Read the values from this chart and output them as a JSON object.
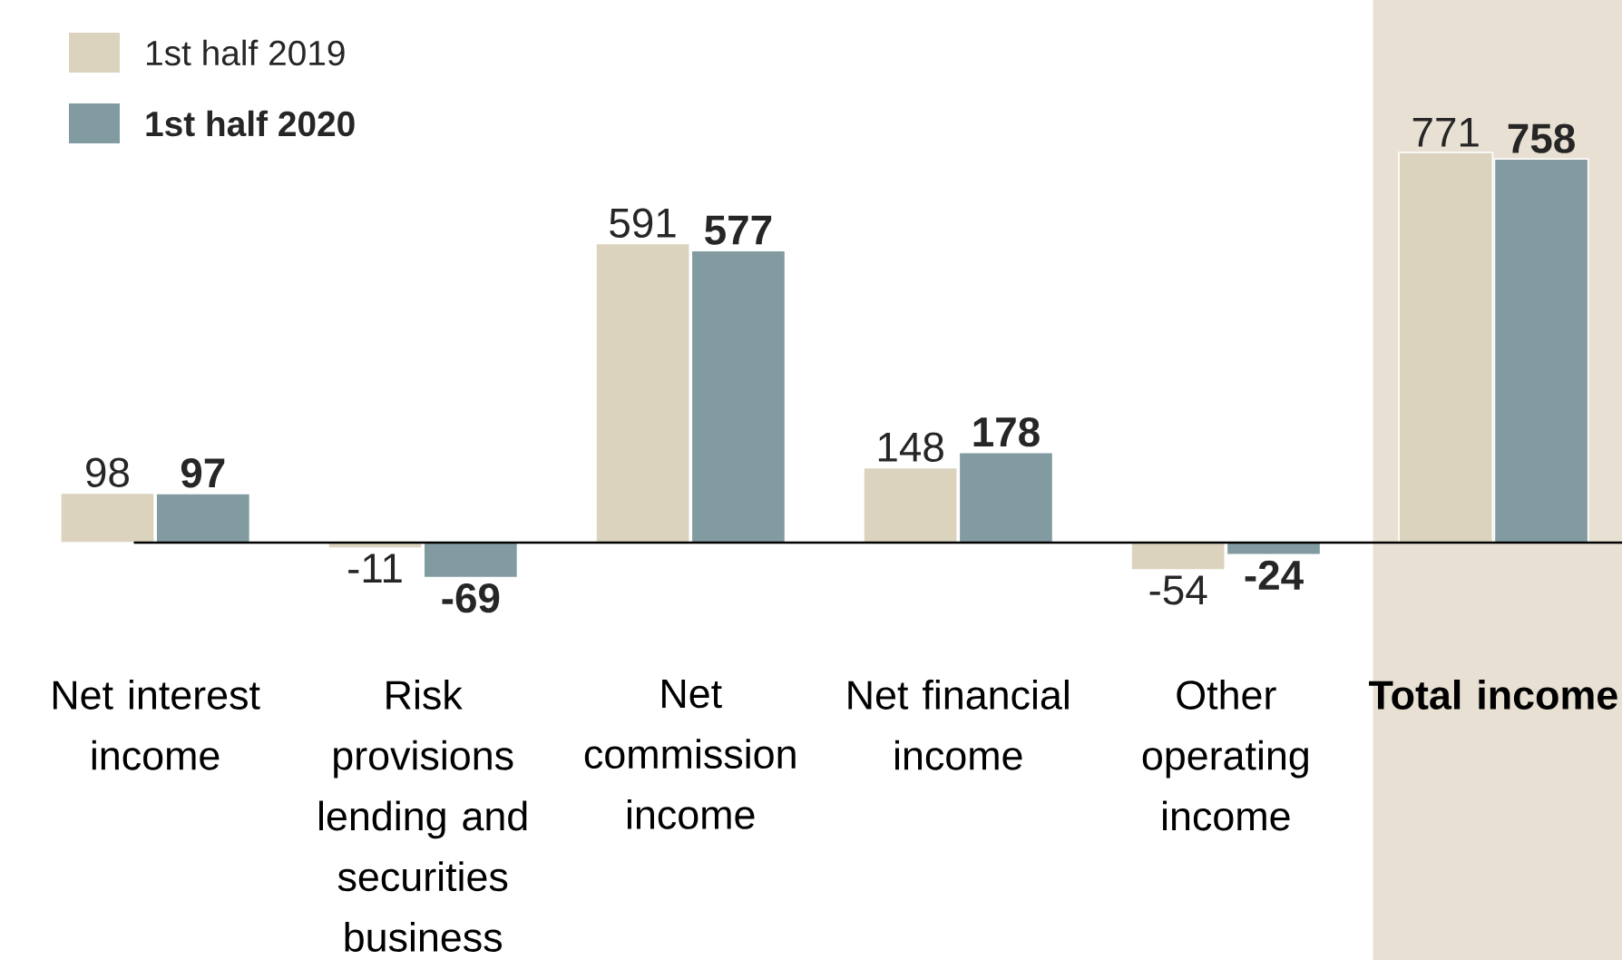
{
  "chart_data": {
    "type": "bar",
    "categories": [
      "Net interest income",
      "Risk provisions lending and securities business",
      "Net commission income",
      "Net financial income",
      "Other operating income",
      "Total income"
    ],
    "series": [
      {
        "name": "1st half 2019",
        "color": "#dbd3bd",
        "values": [
          98,
          -11,
          591,
          148,
          -54,
          771
        ]
      },
      {
        "name": "1st half 2020",
        "color": "#819ba0",
        "values": [
          97,
          -69,
          577,
          178,
          -24,
          758
        ]
      }
    ],
    "data_labels": true,
    "legend": "top left",
    "bands": [
      {
        "axis": "x",
        "from": "Total income",
        "to": "Total income",
        "color": "#e8e1d3"
      }
    ]
  }
}
